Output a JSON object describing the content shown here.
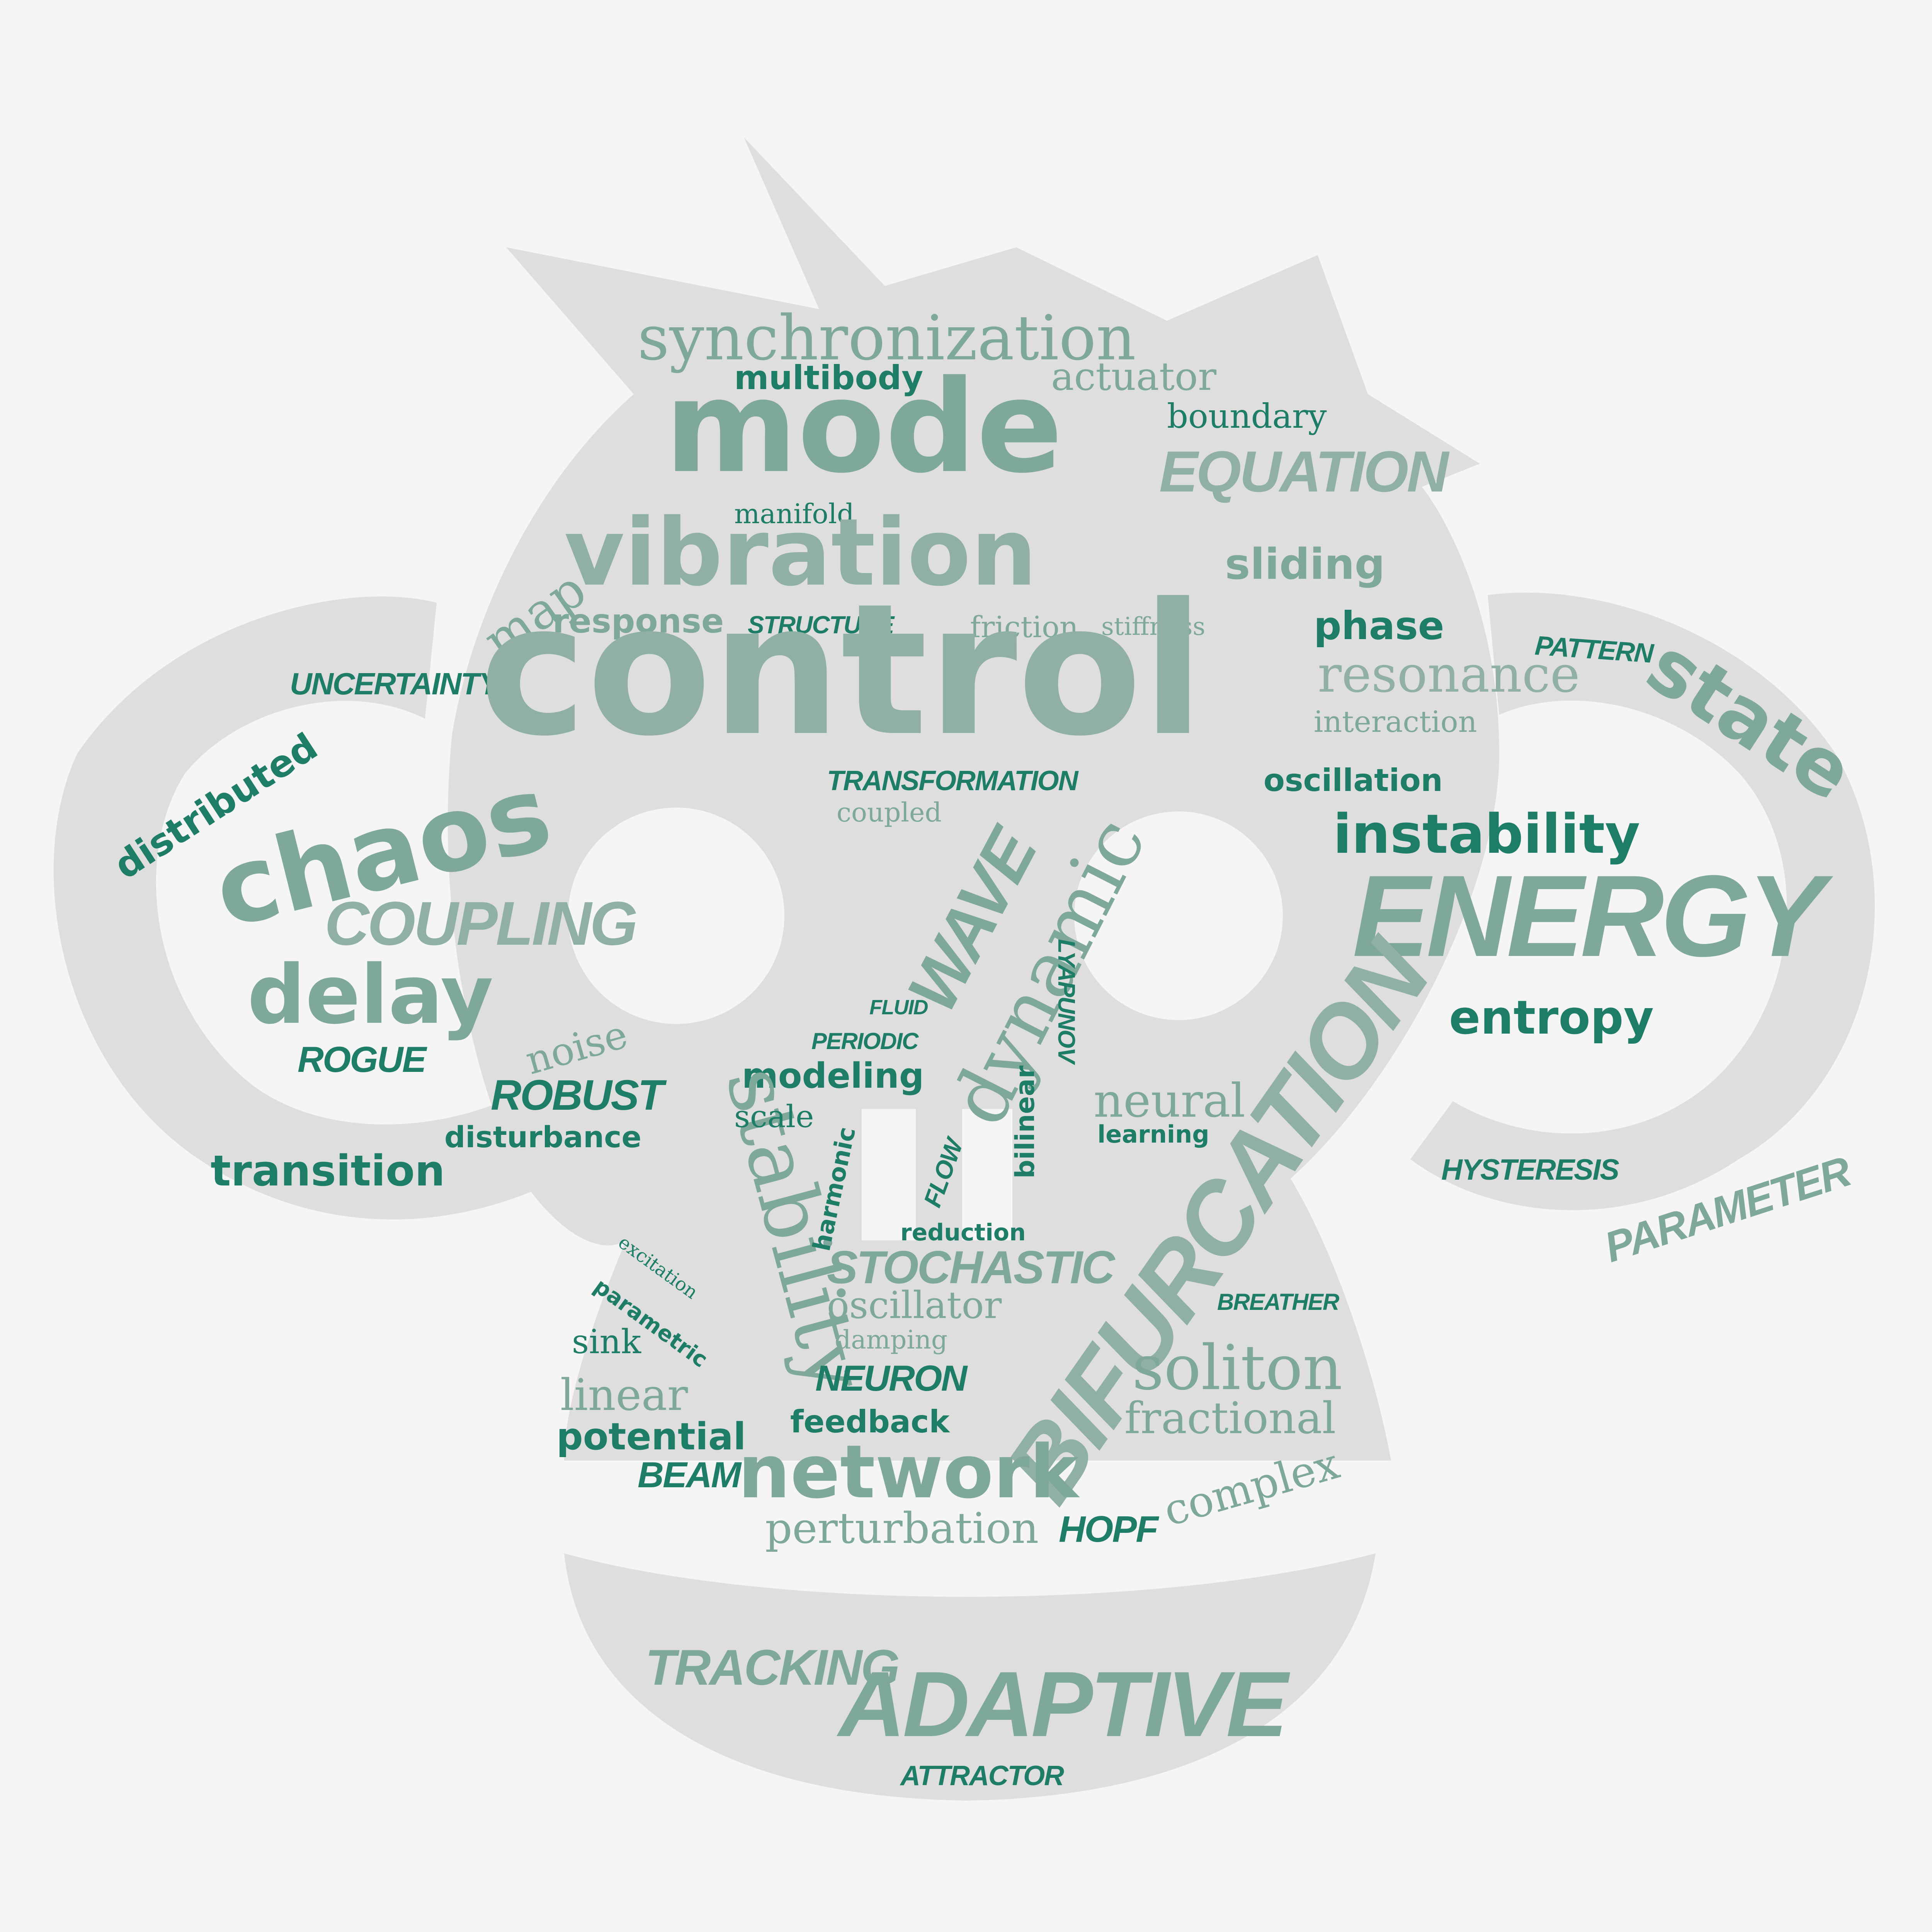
{
  "palette": {
    "background": "#f5f5f5",
    "silhouette": "#dedede",
    "word_light": "#7ea899",
    "word_dark": "#1d7d66",
    "word_muted": "#8fb0a3"
  },
  "shape": "monkey-head-silhouette",
  "words": {
    "synchronization": "synchronization",
    "multibody": "multibody",
    "actuator": "actuator",
    "boundary": "boundary",
    "mode": "mode",
    "equation": "EQUATION",
    "manifold": "manifold",
    "vibration": "vibration",
    "sliding": "sliding",
    "map": "map",
    "response": "response",
    "structure": "STRUCTURE",
    "friction": "friction",
    "stiffness": "stiffness",
    "phase": "phase",
    "pattern": "PATTERN",
    "distributed": "distributed",
    "uncertainty": "UNCERTAINTY",
    "control": "control",
    "resonance": "resonance",
    "interaction": "interaction",
    "state": "state",
    "transformation": "TRANSFORMATION",
    "coupled": "coupled",
    "oscillation": "oscillation",
    "chaos": "chaos",
    "instability": "instability",
    "wave": "WAVE",
    "dynamic": "dynamic",
    "coupling": "COUPLING",
    "energy": "ENERGY",
    "lyapunov": "LYAPUNOV",
    "delay": "delay",
    "fluid": "FLUID",
    "entropy": "entropy",
    "periodic": "PERIODIC",
    "rogue": "ROGUE",
    "noise": "noise",
    "modeling": "modeling",
    "neural": "neural",
    "robust": "ROBUST",
    "stability": "stability",
    "scale": "scale",
    "learning": "learning",
    "disturbance": "disturbance",
    "bilinear": "bilinear",
    "transition": "transition",
    "harmonic": "harmonic",
    "flow": "FLOW",
    "hysteresis": "HYSTERESIS",
    "parameter": "PARAMETER",
    "bifurcation": "BIFURCATION",
    "reduction": "reduction",
    "excitation": "excitation",
    "stochastic": "STOCHASTIC",
    "parametric": "parametric",
    "oscillator": "oscillator",
    "breather": "BREATHER",
    "sink": "sink",
    "damping": "damping",
    "soliton": "soliton",
    "neuron": "NEURON",
    "linear": "linear",
    "feedback": "feedback",
    "fractional": "fractional",
    "potential": "potential",
    "beam": "BEAM",
    "network": "network",
    "complex": "complex",
    "perturbation": "perturbation",
    "hopf": "HOPF",
    "tracking": "TRACKING",
    "adaptive": "ADAPTIVE",
    "attractor": "ATTRACTOR"
  }
}
